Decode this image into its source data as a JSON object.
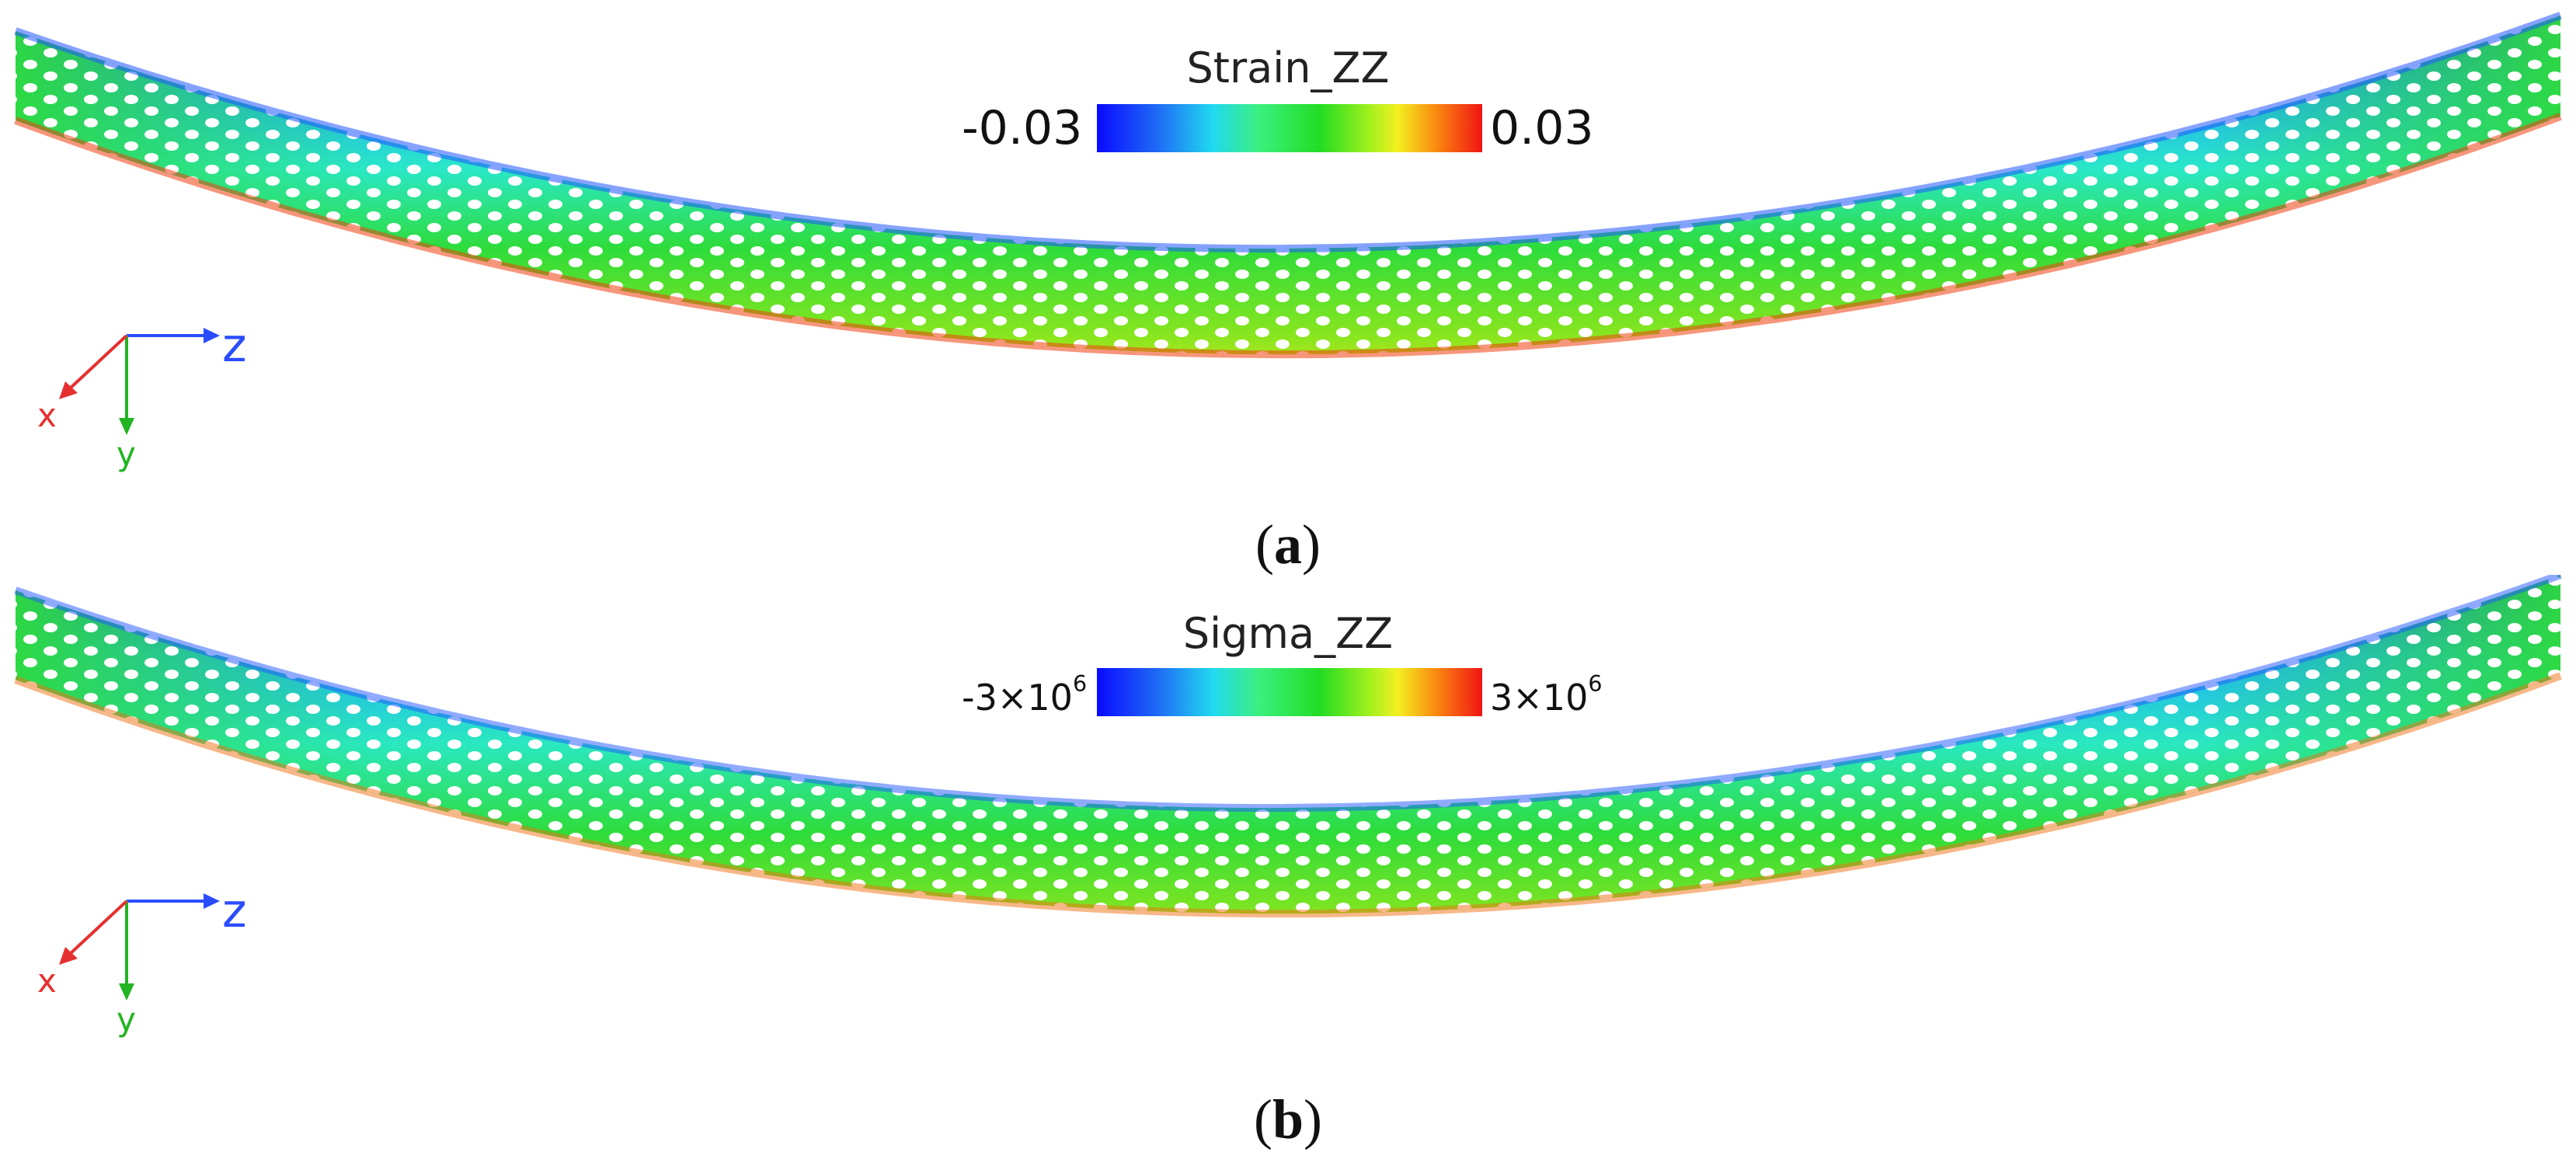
{
  "panels": [
    {
      "colorbar": {
        "title": "Strain_ZZ",
        "min_label": "-0.03",
        "max_label": "0.03"
      },
      "axes": {
        "x": "x",
        "y": "y",
        "z": "z"
      },
      "caption": {
        "open": "(",
        "letter": "a",
        "close": ")"
      }
    },
    {
      "colorbar": {
        "title": "Sigma_ZZ",
        "min_base": "-3×10",
        "min_exp": "6",
        "max_base": "3×10",
        "max_exp": "6"
      },
      "axes": {
        "x": "x",
        "y": "y",
        "z": "z"
      },
      "caption": {
        "open": "(",
        "letter": "b",
        "close": ")"
      }
    }
  ],
  "colors": {
    "tensile": "#f01414",
    "compressive": "#0a0aff",
    "neutral": "#22dc22",
    "axis_x": "#e53030",
    "axis_y": "#22b422",
    "axis_z": "#2a4cff"
  }
}
